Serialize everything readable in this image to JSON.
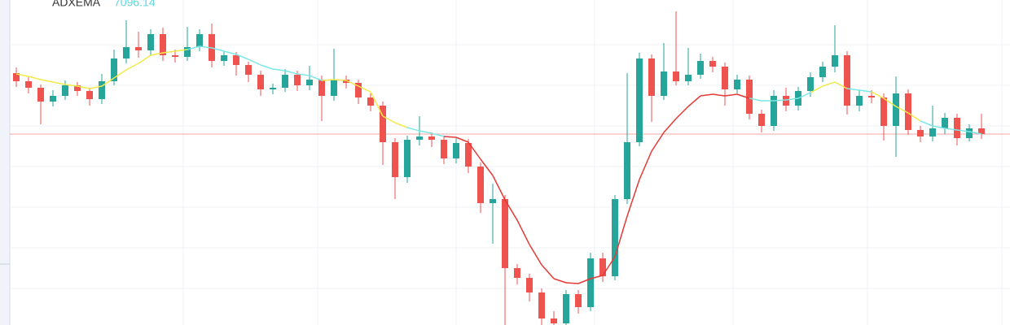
{
  "chart_data": {
    "type": "candlestick",
    "up_color": "#26a69a",
    "down_color": "#ef5350",
    "last_price_line_color": "#f4a6a4",
    "ylim": [
      6861,
      7261
    ],
    "ygrid": [
      7206,
      7156,
      7106,
      7056,
      7006,
      6956,
      6906
    ],
    "open": [
      7171,
      7161,
      7153,
      7136,
      7143,
      7156,
      7149,
      7139,
      7161,
      7189,
      7203,
      7199,
      7219,
      7193,
      7191,
      7203,
      7219,
      7186,
      7193,
      7181,
      7169,
      7151,
      7153,
      7169,
      7156,
      7163,
      7143,
      7163,
      7159,
      7141,
      7131,
      7086,
      7043,
      7089,
      7093,
      7089,
      7066,
      7085,
      7056,
      7011,
      7016,
      6931,
      6919,
      6901,
      6869,
      6863,
      6899,
      6883,
      6943,
      6921,
      7016,
      7086,
      7189,
      7143,
      7173,
      7161,
      7169,
      7186,
      7179,
      7151,
      7163,
      7121,
      7106,
      7143,
      7131,
      7149,
      7166,
      7179,
      7193,
      7131,
      7143,
      7141,
      7106,
      7146,
      7101,
      7093,
      7103,
      7116,
      7091,
      7103
    ],
    "high": [
      7178,
      7166,
      7157,
      7150,
      7162,
      7160,
      7153,
      7170,
      7200,
      7236,
      7222,
      7225,
      7227,
      7200,
      7228,
      7225,
      7232,
      7198,
      7197,
      7185,
      7174,
      7158,
      7176,
      7174,
      7180,
      7168,
      7201,
      7168,
      7163,
      7146,
      7136,
      7091,
      7094,
      7118,
      7098,
      7094,
      7091,
      7090,
      7061,
      7035,
      7021,
      6936,
      6924,
      6906,
      6878,
      6904,
      6904,
      6950,
      6950,
      7021,
      7171,
      7196,
      7194,
      7208,
      7247,
      7202,
      7195,
      7191,
      7184,
      7169,
      7168,
      7126,
      7150,
      7153,
      7154,
      7172,
      7185,
      7230,
      7198,
      7150,
      7150,
      7146,
      7167,
      7151,
      7106,
      7131,
      7122,
      7121,
      7108,
      7121
    ],
    "low": [
      7154,
      7146,
      7108,
      7130,
      7138,
      7143,
      7131,
      7133,
      7156,
      7183,
      7190,
      7193,
      7186,
      7184,
      7186,
      7198,
      7178,
      7180,
      7168,
      7160,
      7143,
      7145,
      7148,
      7149,
      7150,
      7112,
      7137,
      7152,
      7133,
      7124,
      7058,
      7016,
      7036,
      7082,
      7080,
      7059,
      7060,
      7048,
      6999,
      6961,
      6861,
      6911,
      6890,
      6861,
      6861,
      6861,
      6875,
      6878,
      6914,
      6916,
      7010,
      7081,
      7111,
      7138,
      7156,
      7156,
      7164,
      7172,
      7131,
      7146,
      7114,
      7098,
      7100,
      7124,
      7125,
      7142,
      7160,
      7172,
      7120,
      7124,
      7134,
      7088,
      7068,
      7095,
      7086,
      7087,
      7096,
      7082,
      7087,
      7090
    ],
    "close": [
      7161,
      7153,
      7136,
      7143,
      7156,
      7149,
      7139,
      7161,
      7189,
      7203,
      7199,
      7219,
      7193,
      7191,
      7203,
      7219,
      7186,
      7193,
      7181,
      7169,
      7151,
      7153,
      7169,
      7156,
      7163,
      7143,
      7163,
      7159,
      7141,
      7131,
      7086,
      7043,
      7089,
      7093,
      7089,
      7066,
      7085,
      7056,
      7011,
      7016,
      6931,
      6919,
      6901,
      6869,
      6863,
      6899,
      6883,
      6943,
      6921,
      7016,
      7086,
      7189,
      7143,
      7173,
      7161,
      7169,
      7186,
      7179,
      7151,
      7163,
      7121,
      7106,
      7143,
      7131,
      7149,
      7166,
      7179,
      7193,
      7131,
      7143,
      7141,
      7106,
      7146,
      7101,
      7093,
      7103,
      7116,
      7091,
      7103,
      7096
    ],
    "series": [
      {
        "name": "ADXEMA",
        "value_color": "#5fd8dc",
        "values": [
          7170,
          7167,
          7163,
          7160,
          7157,
          7155,
          7152,
          7155,
          7165,
          7175,
          7183,
          7193,
          7196,
          7198,
          7200,
          7204,
          7202,
          7198,
          7194,
          7188,
          7181,
          7176,
          7174,
          7170,
          7168,
          7162,
          7163,
          7162,
          7155,
          7148,
          7118,
          7110,
          7104,
          7100,
          7097,
          7093,
          7092,
          7086,
          7065,
          7045,
          7015,
          6990,
          6960,
          6935,
          6918,
          6913,
          6912,
          6918,
          6922,
          6945,
          6995,
          7040,
          7075,
          7098,
          7115,
          7130,
          7143,
          7145,
          7143,
          7145,
          7140,
          7137,
          7137,
          7138,
          7140,
          7147,
          7155,
          7160,
          7152,
          7150,
          7148,
          7140,
          7130,
          7122,
          7112,
          7106,
          7103,
          7101,
          7099,
          7096.14
        ],
        "colors": [
          "#f3e94a",
          "#f3e94a",
          "#f3e94a",
          "#f3e94a",
          "#f3e94a",
          "#f3e94a",
          "#f3e94a",
          "#f3e94a",
          "#f3e94a",
          "#f3e94a",
          "#f3e94a",
          "#f3e94a",
          "#f3e94a",
          "#f3e94a",
          "#f3e94a",
          "#7ee7e7",
          "#7ee7e7",
          "#7ee7e7",
          "#7ee7e7",
          "#7ee7e7",
          "#7ee7e7",
          "#7ee7e7",
          "#7ee7e7",
          "#7ee7e7",
          "#7ee7e7",
          "#7ee7e7",
          "#f3e94a",
          "#f3e94a",
          "#f3e94a",
          "#f3e94a",
          "#f3e94a",
          "#f3e94a",
          "#f3e94a",
          "#7ee7e7",
          "#7ee7e7",
          "#7ee7e7",
          "#e53935",
          "#e53935",
          "#e53935",
          "#e53935",
          "#e53935",
          "#e53935",
          "#e53935",
          "#e53935",
          "#e53935",
          "#e53935",
          "#e53935",
          "#e53935",
          "#e53935",
          "#e53935",
          "#e53935",
          "#e53935",
          "#e53935",
          "#e53935",
          "#e53935",
          "#e53935",
          "#e53935",
          "#e53935",
          "#e53935",
          "#e53935",
          "#e53935",
          "#7ee7e7",
          "#7ee7e7",
          "#7ee7e7",
          "#7ee7e7",
          "#7ee7e7",
          "#f3e94a",
          "#f3e94a",
          "#f3e94a",
          "#7ee7e7",
          "#7ee7e7",
          "#f3e94a",
          "#f3e94a",
          "#f3e94a",
          "#f3e94a",
          "#7ee7e7",
          "#7ee7e7",
          "#7ee7e7",
          "#7ee7e7",
          "#7ee7e7"
        ]
      }
    ]
  }
}
